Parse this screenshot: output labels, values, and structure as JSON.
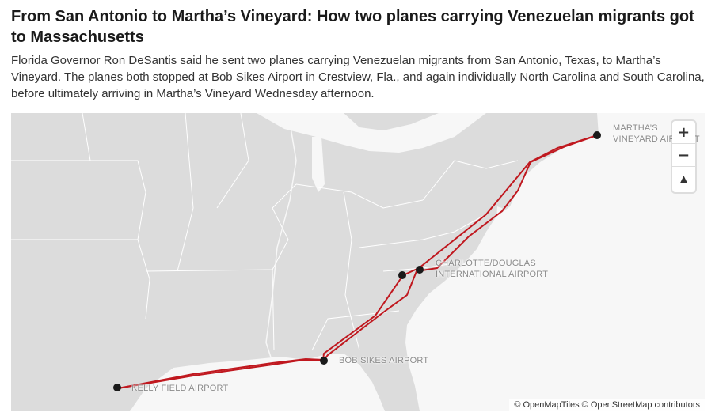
{
  "headline": "From San Antonio to Martha’s Vineyard: How two planes carrying Venezuelan migrants got to Massachusetts",
  "dek": "Florida Governor Ron DeSantis said he sent two planes carrying Venezuelan migrants from San Antonio, Texas, to Martha’s Vineyard. The planes both stopped at Bob Sikes Airport in Crestview, Fla., and again individually North Carolina and South Carolina, before ultimately arriving in Martha’s Vineyard Wednesday afternoon.",
  "map": {
    "labels": {
      "marthas": "MARTHA’S VINEYARD AIRPORT",
      "charlotte": "CHARLOTTE/DOUGLAS INTERNATIONAL AIRPORT",
      "bob": "BOB SIKES AIRPORT",
      "kelly": "KELLY FIELD AIRPORT"
    },
    "controls": {
      "zoom_in": "+",
      "zoom_out": "−",
      "compass": "▲"
    },
    "attribution": "© OpenMapTiles © OpenStreetMap contributors",
    "colors": {
      "route": "#c0181f",
      "land": "#dcdcdc",
      "water": "#f7f7f7",
      "marker": "#1a1a1a"
    }
  }
}
